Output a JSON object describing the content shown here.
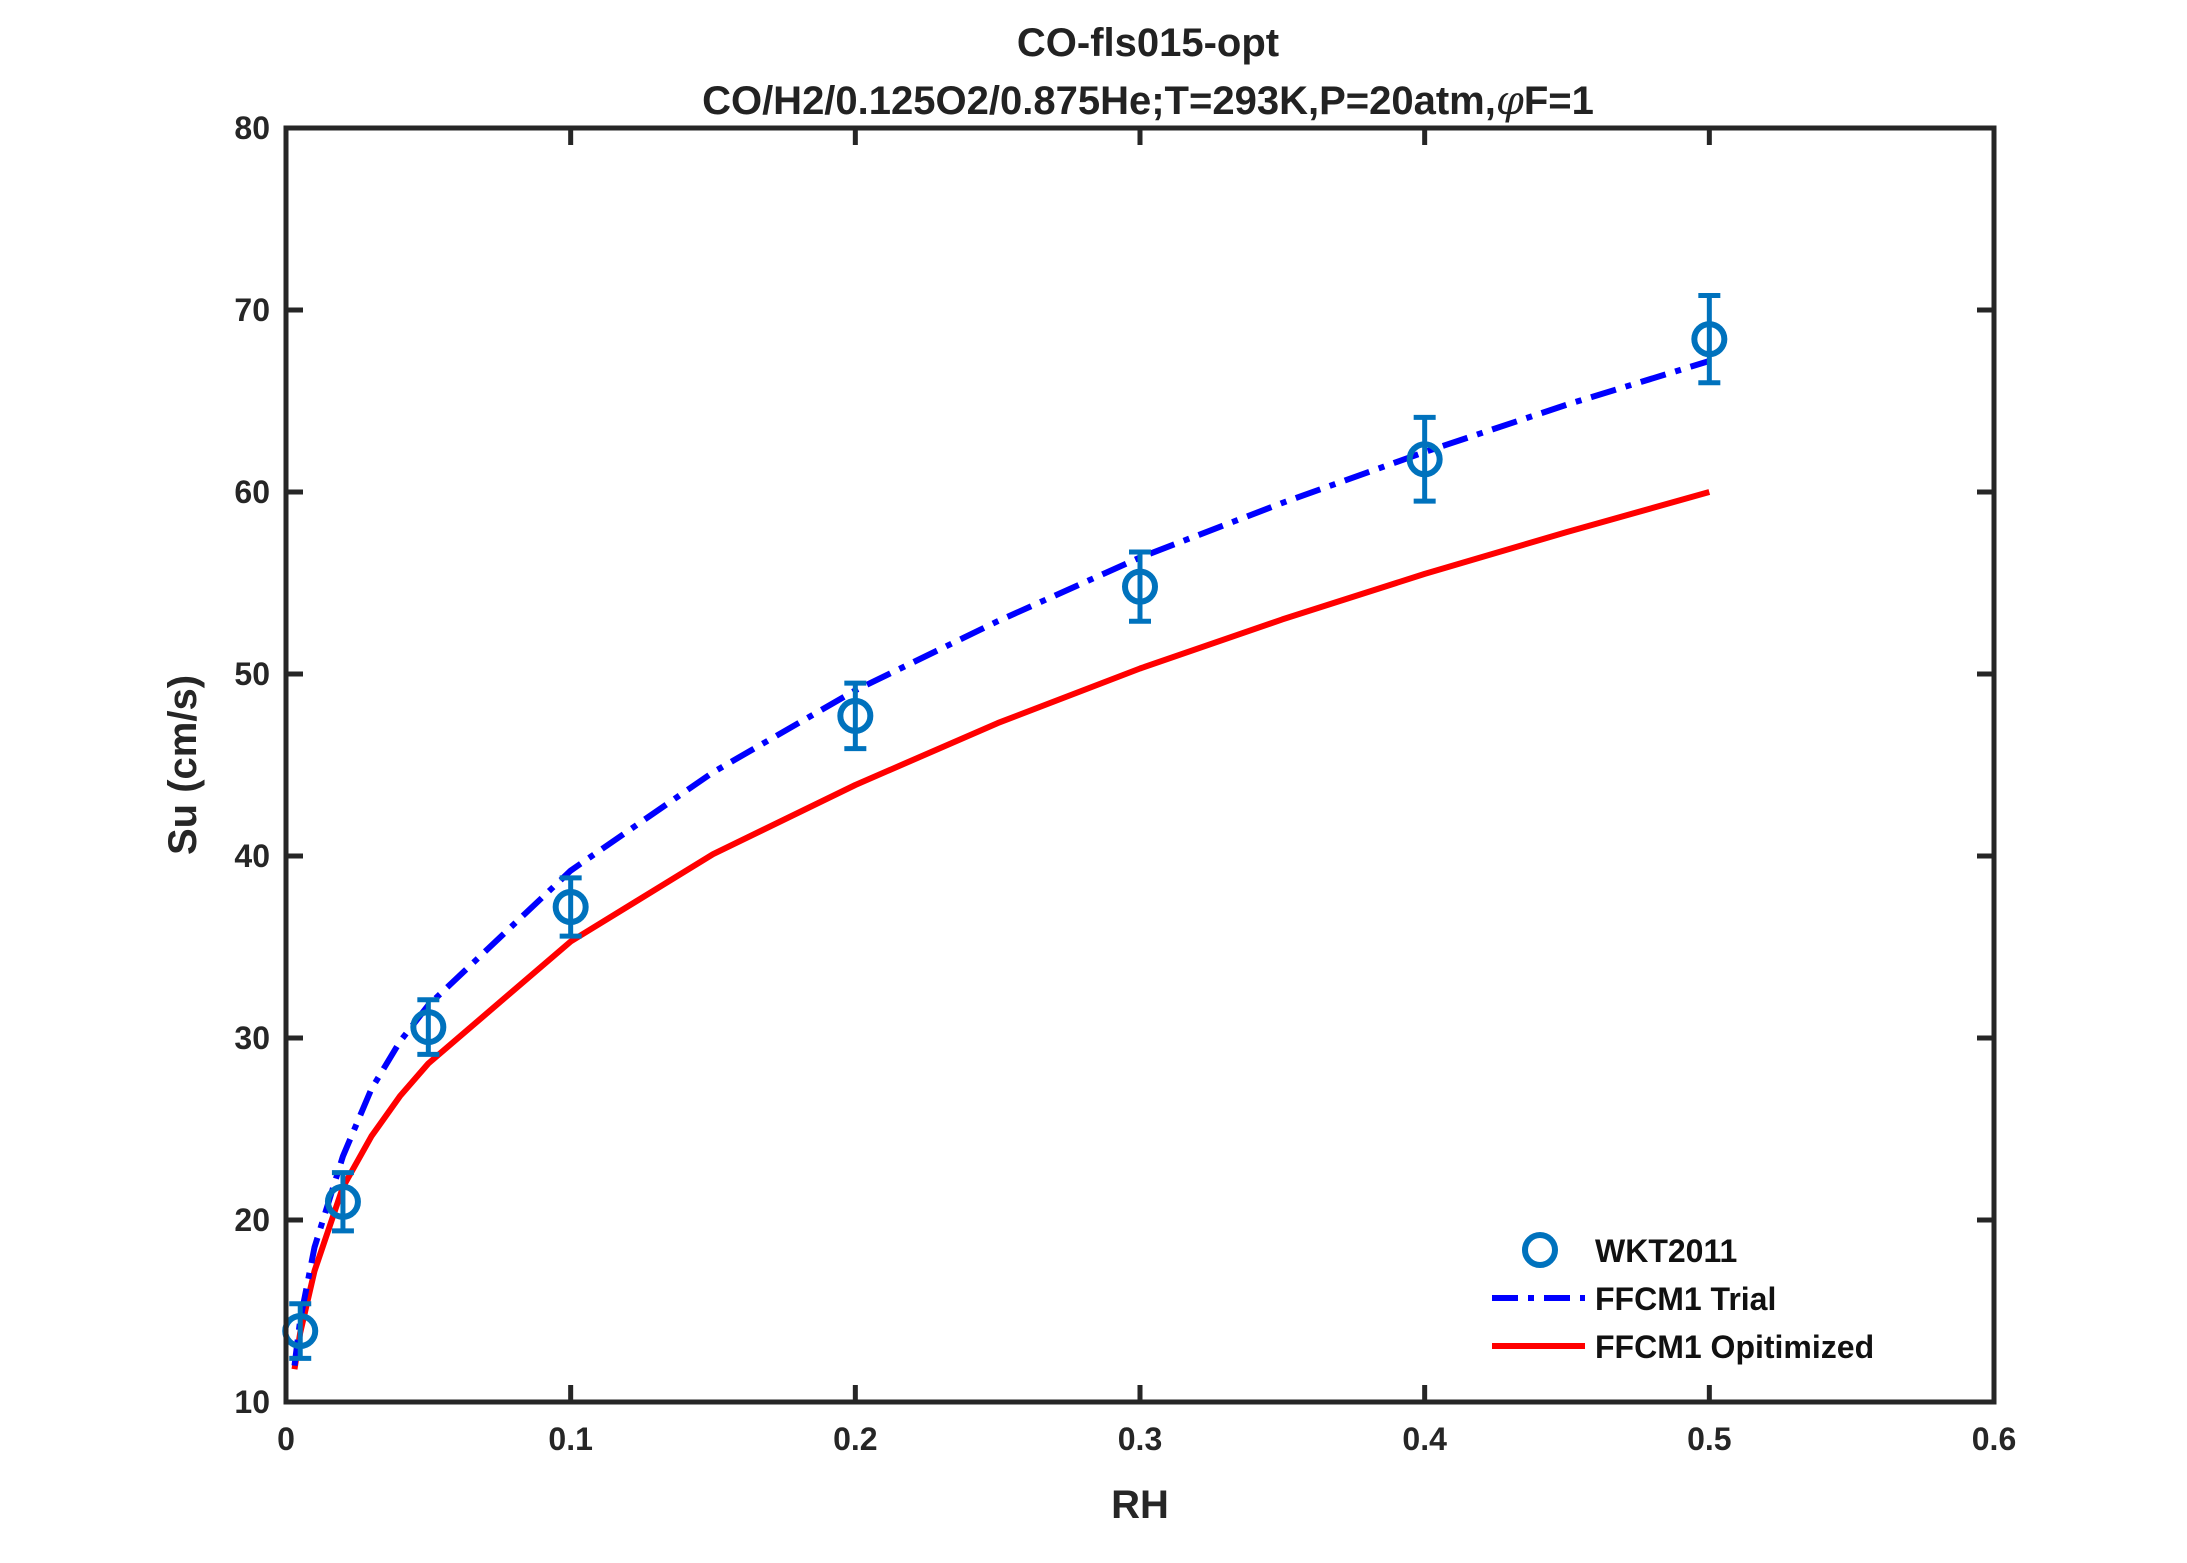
{
  "chart_data": {
    "type": "line",
    "title": "CO-fls015-opt",
    "subtitle_prefix": "CO/H2/0.125O2/0.875He;T=293K,P=20atm,",
    "subtitle_symbol": "φ",
    "subtitle_suffix": "F=1",
    "xlabel": "RH",
    "ylabel": "Su (cm/s)",
    "xlim": [
      0,
      0.6
    ],
    "ylim": [
      10,
      80
    ],
    "xticks": [
      0,
      0.1,
      0.2,
      0.3,
      0.4,
      0.5,
      0.6
    ],
    "xtick_labels": [
      "0",
      "0.1",
      "0.2",
      "0.3",
      "0.4",
      "0.5",
      "0.6"
    ],
    "yticks": [
      10,
      20,
      30,
      40,
      50,
      60,
      70,
      80
    ],
    "ytick_labels": [
      "10",
      "20",
      "30",
      "40",
      "50",
      "60",
      "70",
      "80"
    ],
    "grid": false,
    "legend_position": "bottom-right",
    "series": [
      {
        "name": "WKT2011",
        "kind": "scatter-errorbar",
        "color": "#0072BD",
        "x": [
          0.005,
          0.02,
          0.05,
          0.1,
          0.2,
          0.3,
          0.4,
          0.5
        ],
        "y": [
          13.9,
          21.0,
          30.6,
          37.2,
          47.7,
          54.8,
          61.8,
          68.4
        ],
        "err": [
          1.5,
          1.6,
          1.5,
          1.6,
          1.8,
          1.9,
          2.3,
          2.4
        ]
      },
      {
        "name": "FFCM1 Trial",
        "kind": "line",
        "style": "dashdot",
        "color": "#0000FF",
        "x": [
          0.003,
          0.005,
          0.01,
          0.02,
          0.03,
          0.04,
          0.05,
          0.1,
          0.15,
          0.2,
          0.25,
          0.3,
          0.35,
          0.4,
          0.45,
          0.5
        ],
        "y": [
          12.0,
          14.5,
          18.5,
          23.5,
          27.2,
          29.8,
          31.8,
          39.2,
          44.6,
          49.1,
          52.9,
          56.4,
          59.4,
          62.2,
          64.8,
          67.2
        ]
      },
      {
        "name": "FFCM1 Opitimized",
        "kind": "line",
        "style": "solid",
        "color": "#FF0000",
        "x": [
          0.003,
          0.005,
          0.01,
          0.02,
          0.03,
          0.04,
          0.05,
          0.1,
          0.15,
          0.2,
          0.25,
          0.3,
          0.35,
          0.4,
          0.45,
          0.5
        ],
        "y": [
          11.8,
          13.8,
          17.2,
          21.8,
          24.6,
          26.8,
          28.6,
          35.3,
          40.1,
          43.9,
          47.3,
          50.3,
          53.0,
          55.5,
          57.8,
          60.0
        ]
      }
    ]
  }
}
